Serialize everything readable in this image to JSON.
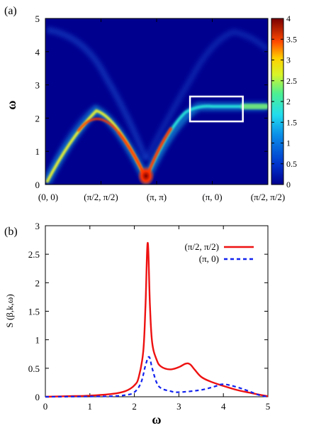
{
  "chart_data": [
    {
      "type": "heatmap",
      "panel_label": "(a)",
      "ylabel": "ω",
      "xlabel": "",
      "ylim": [
        0,
        5
      ],
      "y_ticks": [
        "0",
        "1",
        "2",
        "3",
        "4",
        "5"
      ],
      "x_ticks": [
        "(0, 0)",
        "(π/2, π/2)",
        "(π, π)",
        "(π, 0)",
        "(π/2, π/2)"
      ],
      "colorbar": {
        "range": [
          0,
          4
        ],
        "ticks": [
          "0",
          "0.5",
          "1",
          "1.5",
          "2",
          "2.5",
          "3",
          "3.5",
          "4"
        ]
      },
      "highlight_box": {
        "k_range": [
          2.6,
          3.55
        ],
        "omega_range": [
          1.9,
          2.65
        ]
      },
      "grid": false,
      "colors": {
        "low": "#00008f",
        "mid": "#1ec8ff",
        "high": "#7a0000"
      }
    },
    {
      "type": "line",
      "panel_label": "(b)",
      "xlabel": "ω",
      "ylabel": "S (β,k,ω)",
      "xlim": [
        0,
        5
      ],
      "ylim": [
        0,
        3
      ],
      "x_ticks": [
        "0",
        "1",
        "2",
        "3",
        "4",
        "5"
      ],
      "y_ticks": [
        "0",
        "0.5",
        "1",
        "1.5",
        "2",
        "2.5",
        "3"
      ],
      "legend_position": "top-right",
      "grid": false,
      "series": [
        {
          "name": "(π/2, π/2)",
          "style": "solid",
          "color": "#ee1111",
          "x": [
            0,
            0.5,
            1.0,
            1.5,
            1.8,
            2.0,
            2.1,
            2.2,
            2.25,
            2.3,
            2.35,
            2.4,
            2.5,
            2.6,
            2.8,
            3.0,
            3.15,
            3.25,
            3.35,
            3.5,
            3.7,
            4.0,
            4.3,
            4.6,
            4.85,
            5.0
          ],
          "values": [
            0.0,
            0.01,
            0.02,
            0.05,
            0.1,
            0.2,
            0.35,
            0.8,
            1.6,
            2.7,
            1.6,
            0.95,
            0.65,
            0.53,
            0.48,
            0.52,
            0.58,
            0.57,
            0.48,
            0.35,
            0.27,
            0.19,
            0.12,
            0.07,
            0.03,
            0.01
          ]
        },
        {
          "name": "(π, 0)",
          "style": "dashed",
          "color": "#1122ee",
          "x": [
            0,
            1.0,
            1.5,
            1.8,
            2.0,
            2.15,
            2.25,
            2.33,
            2.4,
            2.5,
            2.6,
            2.8,
            3.0,
            3.5,
            3.8,
            4.0,
            4.3,
            4.6,
            4.8,
            5.0
          ],
          "values": [
            0.0,
            0.005,
            0.01,
            0.03,
            0.08,
            0.25,
            0.55,
            0.7,
            0.5,
            0.25,
            0.15,
            0.1,
            0.08,
            0.12,
            0.18,
            0.22,
            0.17,
            0.09,
            0.03,
            0.0
          ]
        }
      ]
    }
  ]
}
